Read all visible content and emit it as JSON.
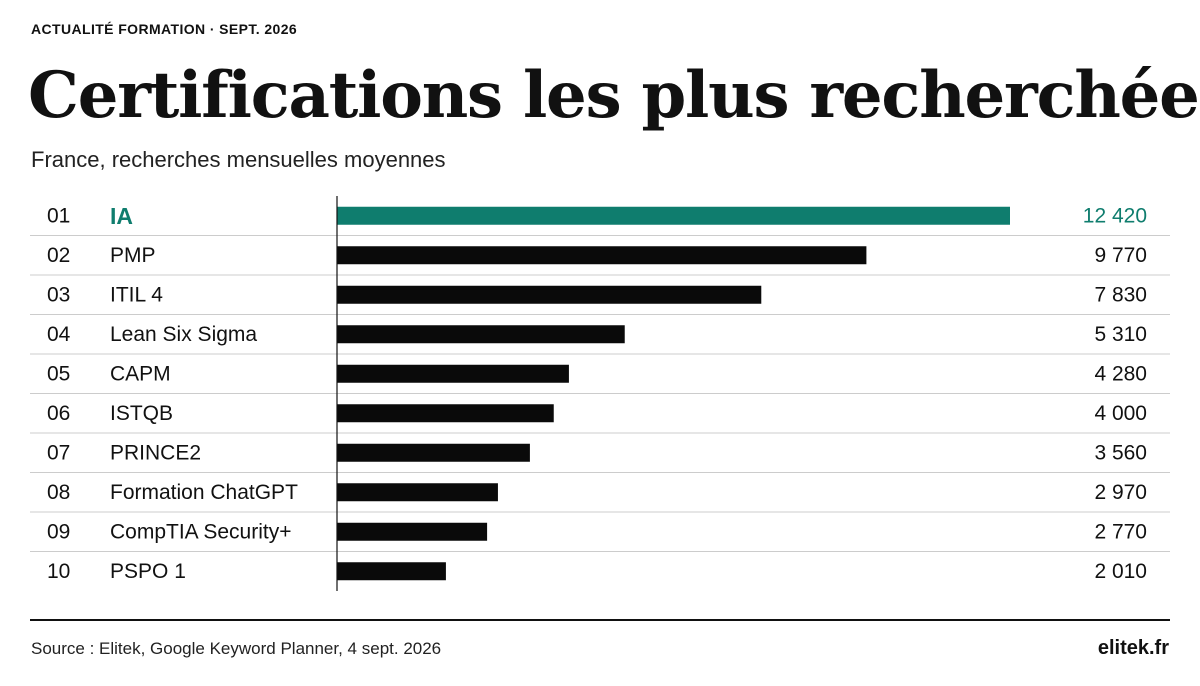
{
  "header": {
    "kicker": "ACTUALITÉ FORMATION · SEPT. 2026",
    "title": "Certifications les plus recherchées",
    "subtitle": "France, recherches mensuelles moyennes"
  },
  "colors": {
    "accent": "#0f7d6e",
    "bar": "#0a0a0a",
    "text": "#111111",
    "gridline": "#cccccc"
  },
  "chart_data": {
    "type": "bar",
    "orientation": "horizontal",
    "title": "Certifications les plus recherchées",
    "subtitle": "France, recherches mensuelles moyennes",
    "ranks": [
      "01",
      "02",
      "03",
      "04",
      "05",
      "06",
      "07",
      "08",
      "09",
      "10"
    ],
    "categories": [
      "IA",
      "PMP",
      "ITIL 4",
      "Lean Six Sigma",
      "CAPM",
      "ISTQB",
      "PRINCE2",
      "Formation ChatGPT",
      "CompTIA Security+",
      "PSPO 1"
    ],
    "values": [
      12420,
      9770,
      7830,
      5310,
      4280,
      4000,
      3560,
      2970,
      2770,
      2010
    ],
    "value_labels": [
      "12 420",
      "9 770",
      "7 830",
      "5 310",
      "4 280",
      "4 000",
      "3 560",
      "2 970",
      "2 770",
      "2 010"
    ],
    "highlighted_index": 0,
    "xlim": [
      0,
      12420
    ],
    "grid": false,
    "legend": "none"
  },
  "footer": {
    "source": "Source : Elitek, Google Keyword Planner, 4 sept. 2026",
    "site": "elitek.fr"
  }
}
